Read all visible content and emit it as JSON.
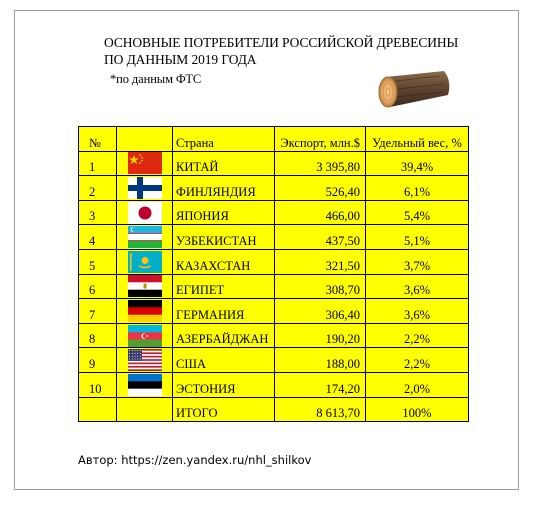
{
  "title_line1": "ОСНОВНЫЕ ПОТРЕБИТЕЛИ РОССИЙСКОЙ ДРЕВЕСИНЫ",
  "title_line2": "ПО ДАННЫМ 2019 ГОДА",
  "note": "*по данным ФТС",
  "table": {
    "headers": {
      "num": "№",
      "flag": "",
      "country": "Страна",
      "export": "Экспорт, млн.$",
      "share": "Удельный вес, %"
    },
    "rows": [
      {
        "num": "1",
        "flag": "china-flag-icon",
        "country": "КИТАЙ",
        "export": "3 395,80",
        "share": "39,4%"
      },
      {
        "num": "2",
        "flag": "finland-flag-icon",
        "country": "ФИНЛЯНДИЯ",
        "export": "526,40",
        "share": "6,1%"
      },
      {
        "num": "3",
        "flag": "japan-flag-icon",
        "country": "ЯПОНИЯ",
        "export": "466,00",
        "share": "5,4%"
      },
      {
        "num": "4",
        "flag": "uzbekistan-flag-icon",
        "country": "УЗБЕКИСТАН",
        "export": "437,50",
        "share": "5,1%"
      },
      {
        "num": "5",
        "flag": "kazakhstan-flag-icon",
        "country": "КАЗАХСТАН",
        "export": "321,50",
        "share": "3,7%"
      },
      {
        "num": "6",
        "flag": "egypt-flag-icon",
        "country": "ЕГИПЕТ",
        "export": "308,70",
        "share": "3,6%"
      },
      {
        "num": "7",
        "flag": "germany-flag-icon",
        "country": "ГЕРМАНИЯ",
        "export": "306,40",
        "share": "3,6%"
      },
      {
        "num": "8",
        "flag": "azerbaijan-flag-icon",
        "country": "АЗЕРБАЙДЖАН",
        "export": "190,20",
        "share": "2,2%"
      },
      {
        "num": "9",
        "flag": "usa-flag-icon",
        "country": "США",
        "export": "188,00",
        "share": "2,2%"
      },
      {
        "num": "10",
        "flag": "estonia-flag-icon",
        "country": "ЭСТОНИЯ",
        "export": "174,20",
        "share": "2,0%"
      }
    ],
    "total": {
      "label": "ИТОГО",
      "export": "8 613,70",
      "share": "100%"
    }
  },
  "colors": {
    "table_fill": "#ffff00",
    "border": "#000000"
  },
  "author": "Автор: https://zen.yandex.ru/nhl_shilkov"
}
